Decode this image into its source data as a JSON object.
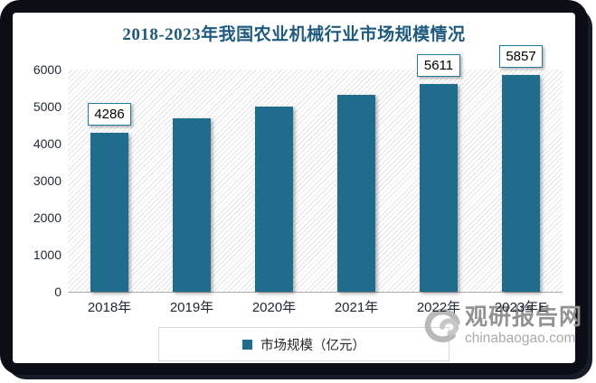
{
  "title": "2018-2023年我国农业机械行业市场规模情况",
  "chart_data": {
    "type": "bar",
    "title": "2018-2023年我国农业机械行业市场规模情况",
    "categories": [
      "2018年",
      "2019年",
      "2020年",
      "2021年",
      "2022年",
      "2023年E"
    ],
    "series": [
      {
        "name": "市场规模（亿元）",
        "values": [
          4286,
          4686,
          5000,
          5310,
          5611,
          5857
        ]
      }
    ],
    "shown_value_labels": [
      "4286",
      null,
      null,
      null,
      "5611",
      "5857"
    ],
    "ylim": [
      0,
      6000
    ],
    "yticks": [
      0,
      1000,
      2000,
      3000,
      4000,
      5000,
      6000
    ],
    "grid": false,
    "legend_position": "bottom",
    "bar_color": "#1f6c8c"
  },
  "legend": {
    "items": [
      {
        "label": "市场规模（亿元）",
        "color": "#1f6c8c"
      }
    ]
  },
  "watermark": {
    "brand": "观研报告网",
    "domain": "chinabaogao.com"
  },
  "colors": {
    "frame": "#0b0e14",
    "title_text": "#1e5a7d",
    "bar": "#1f6c8c",
    "axis_text": "#222b38",
    "legend_border": "#d9d9d9",
    "watermark_gray": "#929292"
  }
}
